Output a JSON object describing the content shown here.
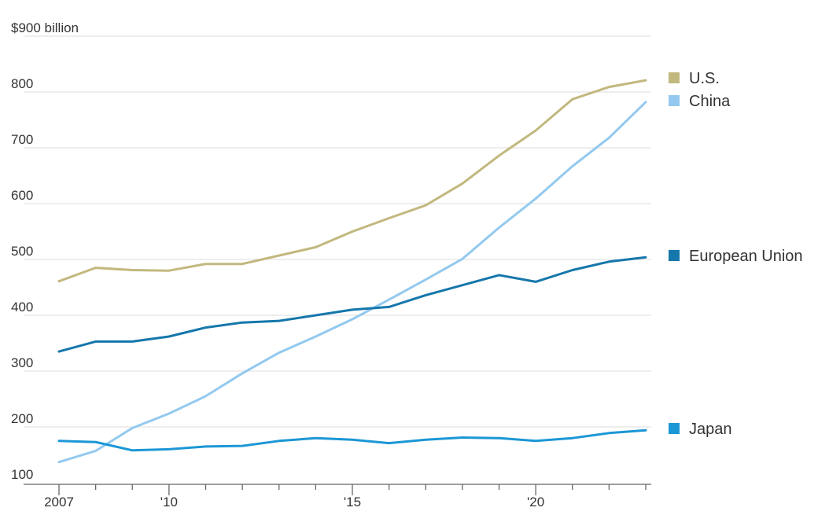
{
  "chart_data": {
    "type": "line",
    "title": "",
    "xlabel": "",
    "ylabel": "",
    "y_unit_label": "$900 billion",
    "ylim": [
      100,
      900
    ],
    "y_ticks": [
      {
        "value": 900,
        "label": "$900 billion"
      },
      {
        "value": 800,
        "label": "800"
      },
      {
        "value": 700,
        "label": "700"
      },
      {
        "value": 600,
        "label": "600"
      },
      {
        "value": 500,
        "label": "500"
      },
      {
        "value": 400,
        "label": "400"
      },
      {
        "value": 300,
        "label": "300"
      },
      {
        "value": 200,
        "label": "200"
      },
      {
        "value": 100,
        "label": "100"
      }
    ],
    "xlim": [
      2007,
      2023
    ],
    "x_tick_labels": [
      {
        "value": 2007,
        "label": "2007"
      },
      {
        "value": 2010,
        "label": "'10"
      },
      {
        "value": 2015,
        "label": "'15"
      },
      {
        "value": 2020,
        "label": "'20"
      }
    ],
    "x": [
      2007,
      2008,
      2009,
      2010,
      2011,
      2012,
      2013,
      2014,
      2015,
      2016,
      2017,
      2018,
      2019,
      2020,
      2021,
      2022,
      2023
    ],
    "grid": true,
    "legend_placement": "right, at series end",
    "series": [
      {
        "name": "U.S.",
        "color": "#c2b87e",
        "values": [
          461,
          485,
          481,
          480,
          492,
          492,
          507,
          522,
          550,
          574,
          597,
          636,
          686,
          731,
          787,
          809,
          821
        ]
      },
      {
        "name": "China",
        "color": "#93c9ef",
        "values": [
          137,
          157,
          198,
          224,
          255,
          296,
          333,
          362,
          393,
          428,
          464,
          501,
          557,
          609,
          667,
          718,
          782
        ]
      },
      {
        "name": "European Union",
        "color": "#1577ab",
        "values": [
          335,
          353,
          353,
          362,
          378,
          387,
          390,
          400,
          410,
          415,
          436,
          454,
          472,
          460,
          481,
          496,
          504
        ]
      },
      {
        "name": "Japan",
        "color": "#1c97d6",
        "values": [
          175,
          173,
          158,
          160,
          165,
          166,
          175,
          180,
          177,
          171,
          177,
          181,
          180,
          175,
          180,
          189,
          194
        ]
      }
    ]
  }
}
